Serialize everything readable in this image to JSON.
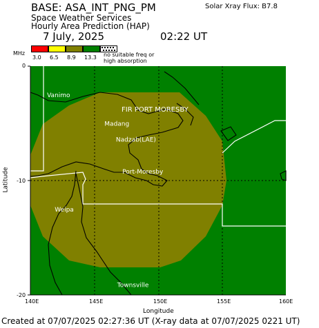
{
  "header": {
    "base": "BASE: ASA_INT_PNG_PM",
    "solar_flux": "Solar Xray Flux: B7.8",
    "service": "Space Weather Services",
    "product": "Hourly Area Prediction (HAP)",
    "date": "7 July, 2025",
    "time": "02:22 UT"
  },
  "legend": {
    "unit": "MHz",
    "values": [
      "3.0",
      "6.5",
      "8.9",
      "13.3"
    ],
    "note_line1": "no suitable freq or",
    "note_line2": "high absorption",
    "colors": [
      "#ff0000",
      "#ffff00",
      "#808000",
      "#008000"
    ]
  },
  "map": {
    "xlabel": "Longitude",
    "ylabel": "Latitude",
    "x_ticks": [
      "140E",
      "145E",
      "150E",
      "155E",
      "160E"
    ],
    "y_ticks": [
      "0",
      "-10",
      "-20"
    ],
    "lon_range": [
      140,
      160
    ],
    "lat_range": [
      0,
      -20
    ],
    "region_label": "FIR PORT MORESBY",
    "places": [
      {
        "name": "Vanimo",
        "lon": 141.3,
        "lat": -2.7
      },
      {
        "name": "Madang",
        "lon": 145.8,
        "lat": -5.2
      },
      {
        "name": "Nadzab(LAE)",
        "lon": 146.7,
        "lat": -6.6
      },
      {
        "name": "Port-Moresby",
        "lon": 147.2,
        "lat": -9.4
      },
      {
        "name": "Weipa",
        "lon": 141.9,
        "lat": -12.7
      },
      {
        "name": "Townsville",
        "lon": 146.8,
        "lat": -19.3
      }
    ],
    "colors": {
      "background": "#008000",
      "coverage": "#808000",
      "coast": "#000000",
      "boundary": "#ffffff"
    }
  },
  "footer": "Created at 07/07/2025 02:27:36 UT (X-ray data at 07/07/2025 0221 UT)"
}
